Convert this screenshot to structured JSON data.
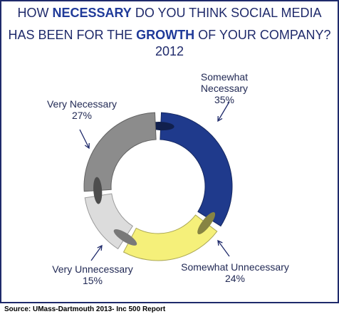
{
  "title": {
    "line1_pre": "HOW ",
    "line1_em": "NECESSARY",
    "line1_post": " DO YOU THINK SOCIAL MEDIA",
    "line2_pre": "HAS BEEN FOR THE ",
    "line2_em": "GROWTH",
    "line2_post": " OF YOUR COMPANY?",
    "year": "2012"
  },
  "source": "Source: UMass-Dartmouth 2013- Inc 500 Report",
  "colors": {
    "frame": "#1f2a6b",
    "title": "#1f2a6b",
    "somewhat_necessary": "#1f3a8c",
    "somewhat_unnecessary": "#f5f07a",
    "very_unnecessary": "#dcdcdc",
    "very_necessary": "#8c8c8c"
  },
  "chart_data": {
    "type": "pie",
    "style": "donut",
    "categories": [
      "Somewhat Necessary",
      "Somewhat Unnecessary",
      "Very Unnecessary",
      "Very Necessary"
    ],
    "values": [
      35,
      24,
      15,
      27
    ],
    "value_labels": [
      "35%",
      "24%",
      "15%",
      "27%"
    ],
    "colors": [
      "#1f3a8c",
      "#f5f07a",
      "#dcdcdc",
      "#8c8c8c"
    ],
    "title": "HOW NECESSARY DO YOU THINK SOCIAL MEDIA HAS BEEN FOR THE GROWTH OF YOUR COMPANY? 2012"
  }
}
